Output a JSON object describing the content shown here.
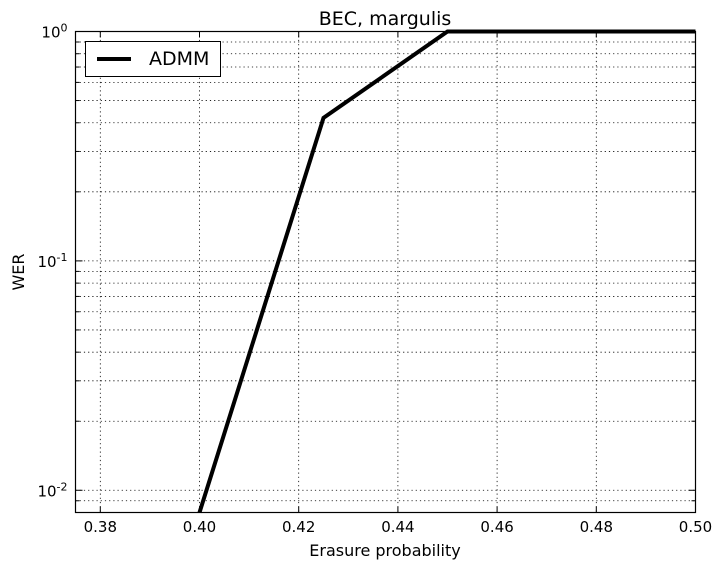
{
  "chart_data": {
    "type": "line",
    "title": "BEC, margulis",
    "xlabel": "Erasure probability",
    "ylabel": "WER",
    "xlim": [
      0.375,
      0.5
    ],
    "ylim": [
      0.008,
      1.0
    ],
    "yscale": "log",
    "grid": true,
    "legend_position": "top-left",
    "xticks": [
      0.38,
      0.4,
      0.42,
      0.44,
      0.46,
      0.48,
      0.5
    ],
    "xtick_labels": [
      "0.38",
      "0.40",
      "0.42",
      "0.44",
      "0.46",
      "0.48",
      "0.50"
    ],
    "yticks": [
      {
        "value": 0.01,
        "base": "10",
        "exp": "-2"
      },
      {
        "value": 0.1,
        "base": "10",
        "exp": "-1"
      },
      {
        "value": 1.0,
        "base": "10",
        "exp": "0"
      }
    ],
    "series": [
      {
        "name": "ADMM",
        "color": "#000000",
        "x": [
          0.4,
          0.425,
          0.45,
          0.5
        ],
        "y": [
          0.008,
          0.42,
          1.0,
          1.0
        ]
      }
    ]
  }
}
